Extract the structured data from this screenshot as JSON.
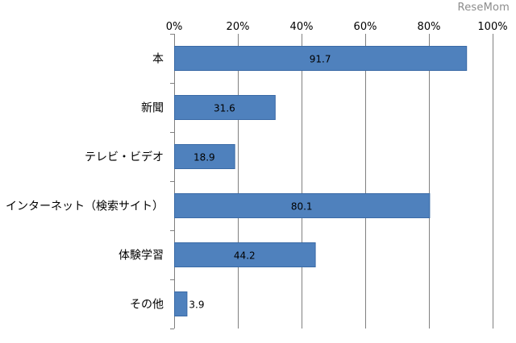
{
  "watermark": "ReseMom",
  "chart_data": {
    "type": "bar",
    "orientation": "horizontal",
    "categories": [
      "本",
      "新聞",
      "テレビ・ビデオ",
      "インターネット（検索サイト）",
      "体験学習",
      "その他"
    ],
    "values": [
      91.7,
      31.6,
      18.9,
      80.1,
      44.2,
      3.9
    ],
    "data_labels": [
      "91.7",
      "31.6",
      "18.9",
      "80.1",
      "44.2",
      "3.9"
    ],
    "xlim": [
      0,
      100
    ],
    "x_ticks": [
      0,
      20,
      40,
      60,
      80,
      100
    ],
    "x_tick_labels": [
      "0%",
      "20%",
      "40%",
      "60%",
      "80%",
      "100%"
    ],
    "x_axis_position": "top",
    "grid": true,
    "bar_color": "#4f81bd",
    "bar_border_color": "#3a6aa6",
    "grid_color": "#808080",
    "title": "",
    "xlabel": "",
    "ylabel": ""
  }
}
